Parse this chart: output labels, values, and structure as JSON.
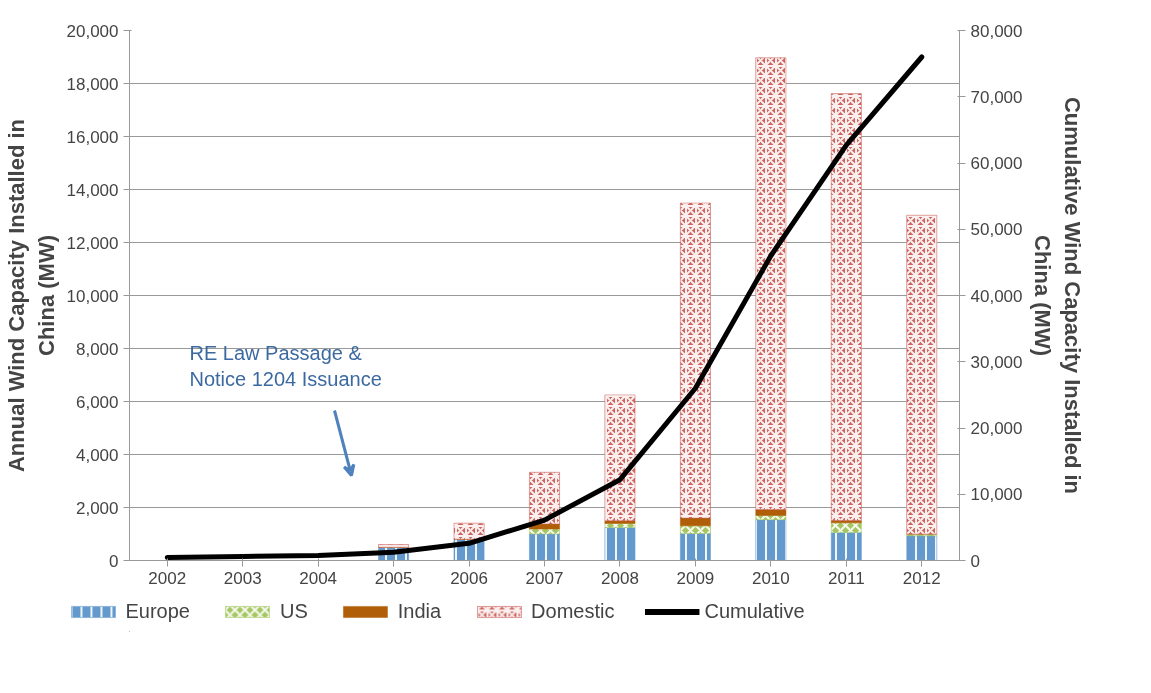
{
  "chart_data": {
    "type": "bar",
    "stacked": true,
    "ylabel": "Annual Wind Capacity Installed in China (MW)",
    "y2label": "Cumulative Wind Capacity Installed in China (MW)",
    "categories": [
      "2002",
      "2003",
      "2004",
      "2005",
      "2006",
      "2007",
      "2008",
      "2009",
      "2010",
      "2011",
      "2012"
    ],
    "series": [
      {
        "name": "Europe",
        "color": "#6499cd",
        "values": [
          0,
          0,
          0,
          500,
          800,
          1000,
          1250,
          1020,
          1540,
          1060,
          930
        ]
      },
      {
        "name": "US",
        "color": "#a5c663",
        "values": [
          0,
          0,
          0,
          0,
          0,
          190,
          150,
          290,
          160,
          360,
          70
        ]
      },
      {
        "name": "India",
        "color": "#b05e08",
        "values": [
          0,
          0,
          0,
          0,
          0,
          190,
          100,
          290,
          220,
          90,
          0
        ]
      },
      {
        "name": "Domestic",
        "color": "#cd6660",
        "values": [
          null,
          null,
          null,
          100,
          610,
          1950,
          4750,
          11890,
          17050,
          16110,
          12030
        ]
      },
      {
        "name": "Cumulative",
        "type": "line",
        "axis": "y2",
        "color": "#000000",
        "values": [
          470,
          600,
          760,
          1260,
          2600,
          6100,
          12200,
          26000,
          46000,
          62700,
          76000
        ]
      }
    ],
    "ylim": [
      0,
      20000
    ],
    "yticks": [
      0,
      {
        "value": 2000,
        "label": "2,000"
      },
      {
        "value": 4000,
        "label": "4,000"
      },
      {
        "value": 6000,
        "label": "6,000"
      },
      {
        "value": 8000,
        "label": "8,000"
      },
      {
        "value": 10000,
        "label": "10,000"
      },
      {
        "value": 12000,
        "label": "12,000"
      },
      {
        "value": 14000,
        "label": "14,000"
      },
      {
        "value": 16000,
        "label": "16,000"
      },
      {
        "value": 18000,
        "label": "18,000"
      },
      {
        "value": 20000,
        "label": "20,000"
      }
    ],
    "y2lim": [
      0,
      80000
    ],
    "y2ticks": [
      0,
      {
        "value": 10000,
        "label": "10,000"
      },
      {
        "value": 20000,
        "label": "20,000"
      },
      {
        "value": 30000,
        "label": "30,000"
      },
      {
        "value": 40000,
        "label": "40,000"
      },
      {
        "value": 50000,
        "label": "50,000"
      },
      {
        "value": 60000,
        "label": "60,000"
      },
      {
        "value": 70000,
        "label": "70,000"
      },
      {
        "value": 80000,
        "label": "80,000"
      }
    ],
    "grid": "y",
    "legend": "bottom",
    "annotations": [
      "RE Law Passage & Notice 1204 Issuance"
    ]
  }
}
